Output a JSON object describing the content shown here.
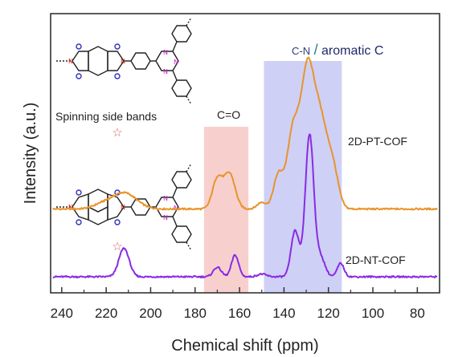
{
  "chart_data": {
    "type": "line",
    "xlabel": "Chemical shift (ppm)",
    "ylabel": "Intensity (a.u.)",
    "xlim": [
      245,
      70
    ],
    "x_reversed": true,
    "x_ticks": [
      240,
      220,
      200,
      180,
      160,
      140,
      120,
      100,
      80
    ],
    "y_ticks_shown": false,
    "grid": false,
    "series": [
      {
        "name": "2D-PT-COF",
        "color": "#e8942a",
        "baseline": 0.5,
        "peaks": [
          {
            "center": 212,
            "width": 5.5,
            "height": 0.12
          },
          {
            "center": 222,
            "width": 4,
            "height": 0.03
          },
          {
            "center": 170,
            "width": 2.2,
            "height": 0.22
          },
          {
            "center": 164.5,
            "width": 2.5,
            "height": 0.26
          },
          {
            "center": 150,
            "width": 2,
            "height": 0.05
          },
          {
            "center": 142.5,
            "width": 2.2,
            "height": 0.25
          },
          {
            "center": 136,
            "width": 2.6,
            "height": 0.55
          },
          {
            "center": 129.5,
            "width": 3,
            "height": 1.0
          },
          {
            "center": 123.5,
            "width": 3,
            "height": 0.6
          },
          {
            "center": 118,
            "width": 2.5,
            "height": 0.28
          }
        ]
      },
      {
        "name": "2D-NT-COF",
        "color": "#8a2be2",
        "baseline": 0.0,
        "peaks": [
          {
            "center": 212,
            "width": 2.3,
            "height": 0.21
          },
          {
            "center": 170,
            "width": 1.8,
            "height": 0.07
          },
          {
            "center": 162,
            "width": 1.6,
            "height": 0.16
          },
          {
            "center": 150,
            "width": 2,
            "height": 0.02
          },
          {
            "center": 135,
            "width": 1.8,
            "height": 0.34
          },
          {
            "center": 128.5,
            "width": 1.9,
            "height": 1.05
          },
          {
            "center": 123.5,
            "width": 2,
            "height": 0.14
          },
          {
            "center": 114.5,
            "width": 1.5,
            "height": 0.1
          }
        ]
      }
    ],
    "shaded_regions": [
      {
        "from": 176,
        "to": 156,
        "color": "#f6c8c6"
      },
      {
        "from": 149,
        "to": 114,
        "color": "#c5c8f5"
      }
    ],
    "annotations": {
      "spinning": "Spinning side bands",
      "co": "C=O",
      "cn": "C-N",
      "slash": "/",
      "aromatic": "aromatic C",
      "star_glyph": "☆"
    }
  }
}
